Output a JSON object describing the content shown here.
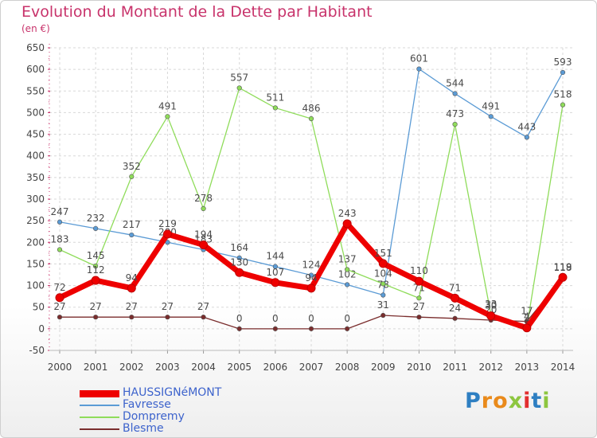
{
  "title": "Evolution du Montant de la Dette par Habitant",
  "subtitle": "(en €)",
  "logo": {
    "text": "Proxiti",
    "letters": [
      "P",
      "r",
      "o",
      "x",
      "i",
      "t",
      "i"
    ],
    "colors": [
      "#2e7fc2",
      "#e98a1b",
      "#e98a1b",
      "#8dc63f",
      "#e22f2f",
      "#2e7fc2",
      "#8dc63f"
    ]
  },
  "chart_data": {
    "type": "line",
    "x": [
      "2000",
      "2001",
      "2002",
      "2003",
      "2004",
      "2005",
      "2006",
      "2007",
      "2008",
      "2009",
      "2010",
      "2011",
      "2012",
      "2013",
      "2014"
    ],
    "ylim": [
      -50,
      650
    ],
    "yticks": [
      "-50",
      "0",
      "50",
      "100",
      "150",
      "200",
      "250",
      "300",
      "350",
      "400",
      "450",
      "500",
      "550",
      "600",
      "650"
    ],
    "grid": true,
    "legend_position": "bottom",
    "series": [
      {
        "name": "Favresse",
        "color": "#5b9bd5",
        "width": 1.3,
        "values": [
          247,
          232,
          217,
          200,
          183,
          164,
          144,
          124,
          102,
          78,
          601,
          544,
          491,
          443,
          593
        ],
        "labels": [
          "247",
          "232",
          "217",
          "200",
          "183",
          "164",
          "144",
          "124",
          "102",
          "78",
          "601",
          "544",
          "491",
          "443",
          "593"
        ]
      },
      {
        "name": "Dompremy",
        "color": "#8fdc5a",
        "width": 1.3,
        "values": [
          183,
          145,
          352,
          491,
          278,
          557,
          511,
          486,
          137,
          104,
          71,
          473,
          33,
          4,
          518
        ],
        "labels": [
          "183",
          "145",
          "352",
          "491",
          "278",
          "557",
          "511",
          "486",
          "137",
          "104",
          "71",
          "473",
          "33",
          "4",
          "518"
        ]
      },
      {
        "name": "Blesme",
        "color": "#7a2d2d",
        "width": 1.3,
        "values": [
          27,
          27,
          27,
          27,
          27,
          0,
          0,
          0,
          0,
          31,
          27,
          24,
          20,
          17,
          118
        ],
        "labels": [
          "27",
          "27",
          "27",
          "27",
          "27",
          "0",
          "0",
          "0",
          "0",
          "31",
          "27",
          "24",
          "20",
          "17",
          "118"
        ]
      },
      {
        "name": "HAUSSIGNéMONT",
        "color": "#ee0000",
        "width": 7,
        "values": [
          72,
          112,
          94,
          219,
          194,
          130,
          107,
          94,
          243,
          151,
          110,
          71,
          30,
          2,
          119
        ],
        "labels": [
          "72",
          "112",
          "94",
          "219",
          "194",
          "130",
          "107",
          "94",
          "243",
          "151",
          "110",
          "71",
          "30",
          "2",
          "119"
        ]
      }
    ],
    "legend_order": [
      "HAUSSIGNéMONT",
      "Favresse",
      "Dompremy",
      "Blesme"
    ]
  }
}
